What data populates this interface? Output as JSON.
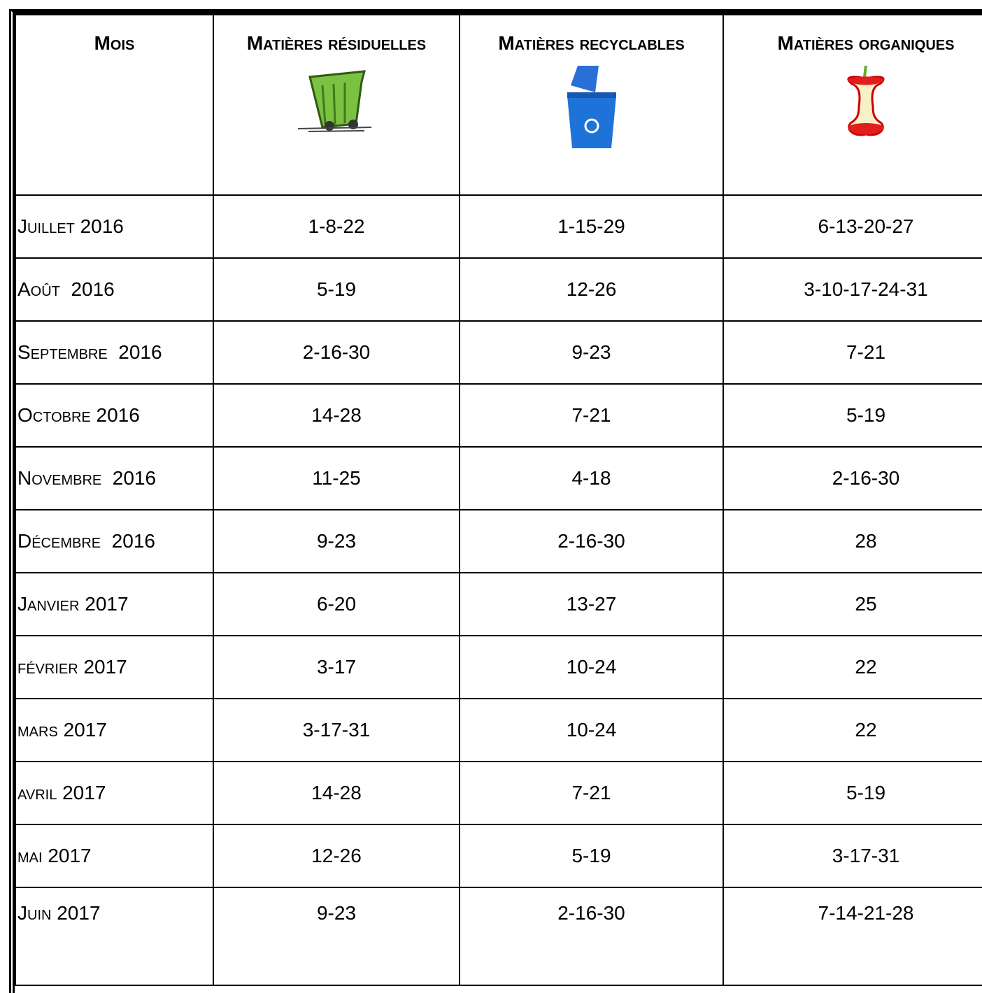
{
  "table": {
    "header": [
      "Mois",
      "Matières résiduelles",
      "Matières recyclables",
      "Matières organiques"
    ],
    "rows": [
      [
        "Juillet 2016",
        "1-8-22",
        "1-15-29",
        "6-13-20-27"
      ],
      [
        "Août  2016",
        "5-19",
        "12-26",
        "3-10-17-24-31"
      ],
      [
        "Septembre  2016",
        "2-16-30",
        "9-23",
        "7-21"
      ],
      [
        "Octobre 2016",
        "14-28",
        "7-21",
        "5-19"
      ],
      [
        "Novembre  2016",
        "11-25",
        "4-18",
        "2-16-30"
      ],
      [
        "Décembre  2016",
        "9-23",
        "2-16-30",
        "28"
      ],
      [
        "Janvier 2017",
        "6-20",
        "13-27",
        "25"
      ],
      [
        "février 2017",
        "3-17",
        "10-24",
        "22"
      ],
      [
        "mars 2017",
        "3-17-31",
        "10-24",
        "22"
      ],
      [
        "avril 2017",
        "14-28",
        "7-21",
        "5-19"
      ],
      [
        "mai 2017",
        "12-26",
        "5-19",
        "3-17-31"
      ],
      [
        "Juin 2017",
        "9-23",
        "2-16-30",
        "7-14-21-28"
      ]
    ]
  }
}
